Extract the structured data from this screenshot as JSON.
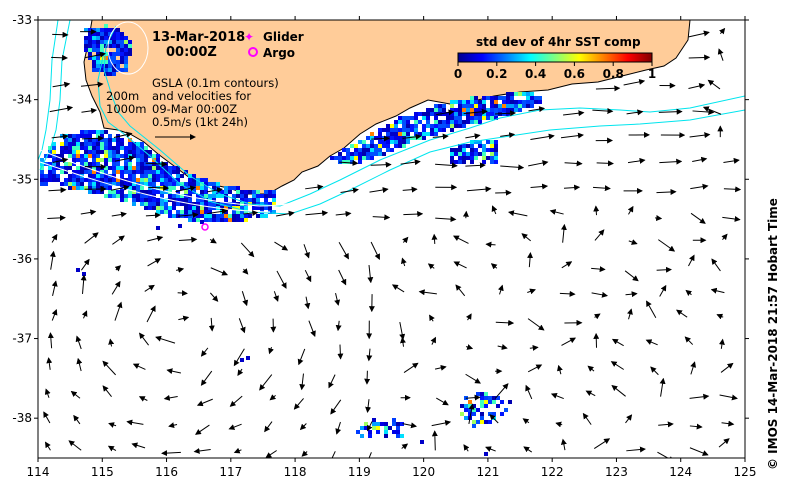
{
  "map": {
    "date": "13-Mar-2018",
    "time": "00:00Z",
    "glider_label": "Glider",
    "argo_label": "Argo",
    "colorbar_title": "std dev of 4hr SST comp",
    "colorbar_ticks": [
      "0",
      "0.2",
      "0.4",
      "0.6",
      "0.8",
      "1"
    ],
    "colorbar_range": [
      0,
      1
    ],
    "isobath_200": "200m",
    "isobath_1000": "1000m",
    "gsla_lines": [
      "GSLA (0.1m contours)",
      "and velocities for",
      "09-Mar 00:00Z",
      "0.5m/s (1kt 24h)"
    ],
    "lon_ticks": [
      "114",
      "115",
      "116",
      "117",
      "118",
      "119",
      "120",
      "121",
      "122",
      "123",
      "124",
      "125"
    ],
    "lat_ticks": [
      "-33",
      "-34",
      "-35",
      "-36",
      "-37",
      "-38"
    ],
    "lon_range": [
      114,
      125
    ],
    "lat_range": [
      -38.5,
      -33
    ],
    "credit": "©  IMOS 14-Mar-2018 21:57 Hobart Time",
    "colors": {
      "land": "#FFCC99",
      "isobath": "#00E5EE",
      "glider": "#FF00FF",
      "argo": "#FF00FF",
      "ocean": "#FFFFFF"
    }
  }
}
